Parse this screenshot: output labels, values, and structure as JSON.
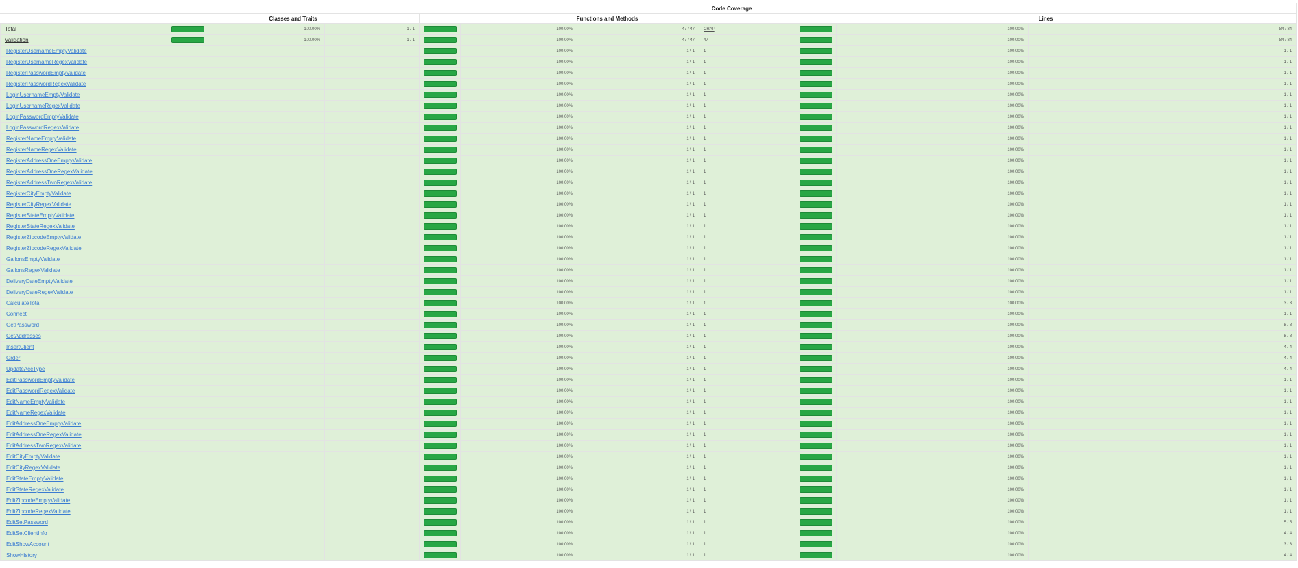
{
  "header": {
    "title": "Code Coverage",
    "col_classes": "Classes and Traits",
    "col_functions": "Functions and Methods",
    "col_lines": "Lines"
  },
  "colors": {
    "success": "#28a745",
    "row_bg": "#dff0d8"
  },
  "rows": [
    {
      "name": "Total",
      "kind": "total",
      "cls_pct": "100.00%",
      "cls_num": "1 / 1",
      "fn_pct": "100.00%",
      "fn_num": "47 / 47",
      "crap": "CRAP",
      "ln_pct": "100.00%",
      "ln_num": "84 / 84"
    },
    {
      "name": "Validation",
      "kind": "dir",
      "cls_pct": "100.00%",
      "cls_num": "1 / 1",
      "fn_pct": "100.00%",
      "fn_num": "47 / 47",
      "crap": "47",
      "ln_pct": "100.00%",
      "ln_num": "84 / 84"
    },
    {
      "name": "RegisterUsernameEmptyValidate",
      "kind": "method",
      "fn_pct": "100.00%",
      "fn_num": "1 / 1",
      "crap": "1",
      "ln_pct": "100.00%",
      "ln_num": "1 / 1"
    },
    {
      "name": "RegisterUsernameRegexValidate",
      "kind": "method",
      "fn_pct": "100.00%",
      "fn_num": "1 / 1",
      "crap": "1",
      "ln_pct": "100.00%",
      "ln_num": "1 / 1"
    },
    {
      "name": "RegisterPasswordEmptyValidate",
      "kind": "method",
      "fn_pct": "100.00%",
      "fn_num": "1 / 1",
      "crap": "1",
      "ln_pct": "100.00%",
      "ln_num": "1 / 1"
    },
    {
      "name": "RegisterPasswordRegexValidate",
      "kind": "method",
      "fn_pct": "100.00%",
      "fn_num": "1 / 1",
      "crap": "1",
      "ln_pct": "100.00%",
      "ln_num": "1 / 1"
    },
    {
      "name": "LoginUsernameEmptyValidate",
      "kind": "method",
      "fn_pct": "100.00%",
      "fn_num": "1 / 1",
      "crap": "1",
      "ln_pct": "100.00%",
      "ln_num": "1 / 1"
    },
    {
      "name": "LoginUsernameRegexValidate",
      "kind": "method",
      "fn_pct": "100.00%",
      "fn_num": "1 / 1",
      "crap": "1",
      "ln_pct": "100.00%",
      "ln_num": "1 / 1"
    },
    {
      "name": "LoginPasswordEmptyValidate",
      "kind": "method",
      "fn_pct": "100.00%",
      "fn_num": "1 / 1",
      "crap": "1",
      "ln_pct": "100.00%",
      "ln_num": "1 / 1"
    },
    {
      "name": "LoginPasswordRegexValidate",
      "kind": "method",
      "fn_pct": "100.00%",
      "fn_num": "1 / 1",
      "crap": "1",
      "ln_pct": "100.00%",
      "ln_num": "1 / 1"
    },
    {
      "name": "RegisterNameEmptyValidate",
      "kind": "method",
      "fn_pct": "100.00%",
      "fn_num": "1 / 1",
      "crap": "1",
      "ln_pct": "100.00%",
      "ln_num": "1 / 1"
    },
    {
      "name": "RegisterNameRegexValidate",
      "kind": "method",
      "fn_pct": "100.00%",
      "fn_num": "1 / 1",
      "crap": "1",
      "ln_pct": "100.00%",
      "ln_num": "1 / 1"
    },
    {
      "name": "RegisterAddressOneEmptyValidate",
      "kind": "method",
      "fn_pct": "100.00%",
      "fn_num": "1 / 1",
      "crap": "1",
      "ln_pct": "100.00%",
      "ln_num": "1 / 1"
    },
    {
      "name": "RegisterAddressOneRegexValidate",
      "kind": "method",
      "fn_pct": "100.00%",
      "fn_num": "1 / 1",
      "crap": "1",
      "ln_pct": "100.00%",
      "ln_num": "1 / 1"
    },
    {
      "name": "RegisterAddressTwoRegexValidate",
      "kind": "method",
      "fn_pct": "100.00%",
      "fn_num": "1 / 1",
      "crap": "1",
      "ln_pct": "100.00%",
      "ln_num": "1 / 1"
    },
    {
      "name": "RegisterCityEmptyValidate",
      "kind": "method",
      "fn_pct": "100.00%",
      "fn_num": "1 / 1",
      "crap": "1",
      "ln_pct": "100.00%",
      "ln_num": "1 / 1"
    },
    {
      "name": "RegisterCityRegexValidate",
      "kind": "method",
      "fn_pct": "100.00%",
      "fn_num": "1 / 1",
      "crap": "1",
      "ln_pct": "100.00%",
      "ln_num": "1 / 1"
    },
    {
      "name": "RegisterStateEmptyValidate",
      "kind": "method",
      "fn_pct": "100.00%",
      "fn_num": "1 / 1",
      "crap": "1",
      "ln_pct": "100.00%",
      "ln_num": "1 / 1"
    },
    {
      "name": "RegisterStateRegexValidate",
      "kind": "method",
      "fn_pct": "100.00%",
      "fn_num": "1 / 1",
      "crap": "1",
      "ln_pct": "100.00%",
      "ln_num": "1 / 1"
    },
    {
      "name": "RegisterZipcodeEmptyValidate",
      "kind": "method",
      "fn_pct": "100.00%",
      "fn_num": "1 / 1",
      "crap": "1",
      "ln_pct": "100.00%",
      "ln_num": "1 / 1"
    },
    {
      "name": "RegisterZipcodeRegexValidate",
      "kind": "method",
      "fn_pct": "100.00%",
      "fn_num": "1 / 1",
      "crap": "1",
      "ln_pct": "100.00%",
      "ln_num": "1 / 1"
    },
    {
      "name": "GallonsEmptyValidate",
      "kind": "method",
      "fn_pct": "100.00%",
      "fn_num": "1 / 1",
      "crap": "1",
      "ln_pct": "100.00%",
      "ln_num": "1 / 1"
    },
    {
      "name": "GallonsRegexValidate",
      "kind": "method",
      "fn_pct": "100.00%",
      "fn_num": "1 / 1",
      "crap": "1",
      "ln_pct": "100.00%",
      "ln_num": "1 / 1"
    },
    {
      "name": "DeliveryDateEmptyValidate",
      "kind": "method",
      "fn_pct": "100.00%",
      "fn_num": "1 / 1",
      "crap": "1",
      "ln_pct": "100.00%",
      "ln_num": "1 / 1"
    },
    {
      "name": "DeliveryDateRegexValidate",
      "kind": "method",
      "fn_pct": "100.00%",
      "fn_num": "1 / 1",
      "crap": "1",
      "ln_pct": "100.00%",
      "ln_num": "1 / 1"
    },
    {
      "name": "CalculateTotal",
      "kind": "method",
      "fn_pct": "100.00%",
      "fn_num": "1 / 1",
      "crap": "1",
      "ln_pct": "100.00%",
      "ln_num": "3 / 3"
    },
    {
      "name": "Connect",
      "kind": "method",
      "fn_pct": "100.00%",
      "fn_num": "1 / 1",
      "crap": "1",
      "ln_pct": "100.00%",
      "ln_num": "1 / 1"
    },
    {
      "name": "GetPassword",
      "kind": "method",
      "fn_pct": "100.00%",
      "fn_num": "1 / 1",
      "crap": "1",
      "ln_pct": "100.00%",
      "ln_num": "8 / 8"
    },
    {
      "name": "GetAddresses",
      "kind": "method",
      "fn_pct": "100.00%",
      "fn_num": "1 / 1",
      "crap": "1",
      "ln_pct": "100.00%",
      "ln_num": "8 / 8"
    },
    {
      "name": "InsertClient",
      "kind": "method",
      "fn_pct": "100.00%",
      "fn_num": "1 / 1",
      "crap": "1",
      "ln_pct": "100.00%",
      "ln_num": "4 / 4"
    },
    {
      "name": "Order",
      "kind": "method",
      "fn_pct": "100.00%",
      "fn_num": "1 / 1",
      "crap": "1",
      "ln_pct": "100.00%",
      "ln_num": "4 / 4"
    },
    {
      "name": "UpdateAccType",
      "kind": "method",
      "fn_pct": "100.00%",
      "fn_num": "1 / 1",
      "crap": "1",
      "ln_pct": "100.00%",
      "ln_num": "4 / 4"
    },
    {
      "name": "EditPasswordEmptyValidate",
      "kind": "method",
      "fn_pct": "100.00%",
      "fn_num": "1 / 1",
      "crap": "1",
      "ln_pct": "100.00%",
      "ln_num": "1 / 1"
    },
    {
      "name": "EditPasswordRegexValidate",
      "kind": "method",
      "fn_pct": "100.00%",
      "fn_num": "1 / 1",
      "crap": "1",
      "ln_pct": "100.00%",
      "ln_num": "1 / 1"
    },
    {
      "name": "EditNameEmptyValidate",
      "kind": "method",
      "fn_pct": "100.00%",
      "fn_num": "1 / 1",
      "crap": "1",
      "ln_pct": "100.00%",
      "ln_num": "1 / 1"
    },
    {
      "name": "EditNameRegexValidate",
      "kind": "method",
      "fn_pct": "100.00%",
      "fn_num": "1 / 1",
      "crap": "1",
      "ln_pct": "100.00%",
      "ln_num": "1 / 1"
    },
    {
      "name": "EditAddressOneEmptyValidate",
      "kind": "method",
      "fn_pct": "100.00%",
      "fn_num": "1 / 1",
      "crap": "1",
      "ln_pct": "100.00%",
      "ln_num": "1 / 1"
    },
    {
      "name": "EditAddressOneRegexValidate",
      "kind": "method",
      "fn_pct": "100.00%",
      "fn_num": "1 / 1",
      "crap": "1",
      "ln_pct": "100.00%",
      "ln_num": "1 / 1"
    },
    {
      "name": "EditAddressTwoRegexValidate",
      "kind": "method",
      "fn_pct": "100.00%",
      "fn_num": "1 / 1",
      "crap": "1",
      "ln_pct": "100.00%",
      "ln_num": "1 / 1"
    },
    {
      "name": "EditCityEmptyValidate",
      "kind": "method",
      "fn_pct": "100.00%",
      "fn_num": "1 / 1",
      "crap": "1",
      "ln_pct": "100.00%",
      "ln_num": "1 / 1"
    },
    {
      "name": "EditCityRegexValidate",
      "kind": "method",
      "fn_pct": "100.00%",
      "fn_num": "1 / 1",
      "crap": "1",
      "ln_pct": "100.00%",
      "ln_num": "1 / 1"
    },
    {
      "name": "EditStateEmptyValidate",
      "kind": "method",
      "fn_pct": "100.00%",
      "fn_num": "1 / 1",
      "crap": "1",
      "ln_pct": "100.00%",
      "ln_num": "1 / 1"
    },
    {
      "name": "EditStateRegexValidate",
      "kind": "method",
      "fn_pct": "100.00%",
      "fn_num": "1 / 1",
      "crap": "1",
      "ln_pct": "100.00%",
      "ln_num": "1 / 1"
    },
    {
      "name": "EditZipcodeEmptyValidate",
      "kind": "method",
      "fn_pct": "100.00%",
      "fn_num": "1 / 1",
      "crap": "1",
      "ln_pct": "100.00%",
      "ln_num": "1 / 1"
    },
    {
      "name": "EditZipcodeRegexValidate",
      "kind": "method",
      "fn_pct": "100.00%",
      "fn_num": "1 / 1",
      "crap": "1",
      "ln_pct": "100.00%",
      "ln_num": "1 / 1"
    },
    {
      "name": "EditSetPassword",
      "kind": "method",
      "fn_pct": "100.00%",
      "fn_num": "1 / 1",
      "crap": "1",
      "ln_pct": "100.00%",
      "ln_num": "5 / 5"
    },
    {
      "name": "EditSetClientInfo",
      "kind": "method",
      "fn_pct": "100.00%",
      "fn_num": "1 / 1",
      "crap": "1",
      "ln_pct": "100.00%",
      "ln_num": "4 / 4"
    },
    {
      "name": "EditShowAccount",
      "kind": "method",
      "fn_pct": "100.00%",
      "fn_num": "1 / 1",
      "crap": "1",
      "ln_pct": "100.00%",
      "ln_num": "3 / 3"
    },
    {
      "name": "ShowHistory",
      "kind": "method",
      "fn_pct": "100.00%",
      "fn_num": "1 / 1",
      "crap": "1",
      "ln_pct": "100.00%",
      "ln_num": "4 / 4"
    }
  ]
}
